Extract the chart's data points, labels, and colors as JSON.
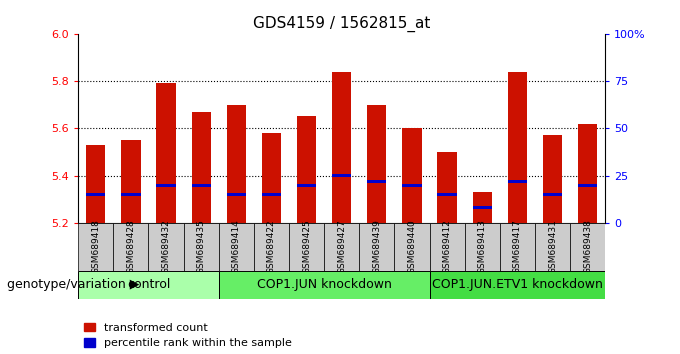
{
  "title": "GDS4159 / 1562815_at",
  "samples": [
    "GSM689418",
    "GSM689428",
    "GSM689432",
    "GSM689435",
    "GSM689414",
    "GSM689422",
    "GSM689425",
    "GSM689427",
    "GSM689439",
    "GSM689440",
    "GSM689412",
    "GSM689413",
    "GSM689417",
    "GSM689431",
    "GSM689438"
  ],
  "transformed_counts": [
    5.53,
    5.55,
    5.79,
    5.67,
    5.7,
    5.58,
    5.65,
    5.84,
    5.7,
    5.6,
    5.5,
    5.33,
    5.84,
    5.57,
    5.62
  ],
  "percentile_ranks": [
    15,
    15,
    20,
    20,
    15,
    15,
    20,
    25,
    22,
    20,
    15,
    8,
    22,
    15,
    20
  ],
  "y_min": 5.2,
  "y_max": 6.0,
  "y_ticks": [
    5.2,
    5.4,
    5.6,
    5.8,
    6.0
  ],
  "right_y_ticks": [
    0,
    25,
    50,
    75,
    100
  ],
  "right_y_labels": [
    "0",
    "25",
    "50",
    "75",
    "100%"
  ],
  "groups": [
    {
      "label": "control",
      "start": 0,
      "end": 4,
      "color": "#aaffaa"
    },
    {
      "label": "COP1.JUN knockdown",
      "start": 4,
      "end": 10,
      "color": "#66ee66"
    },
    {
      "label": "COP1.JUN.ETV1 knockdown",
      "start": 10,
      "end": 15,
      "color": "#44dd44"
    }
  ],
  "bar_color": "#cc1100",
  "percentile_color": "#0000cc",
  "bar_bottom": 5.2,
  "bar_width": 0.55,
  "background_color": "#ffffff",
  "tick_bg_color": "#cccccc",
  "legend_red_label": "transformed count",
  "legend_blue_label": "percentile rank within the sample",
  "xlabel_left": "genotype/variation",
  "title_fontsize": 11,
  "axis_fontsize": 9,
  "tick_fontsize": 8,
  "group_label_fontsize": 9,
  "pct_bar_height": 0.012
}
